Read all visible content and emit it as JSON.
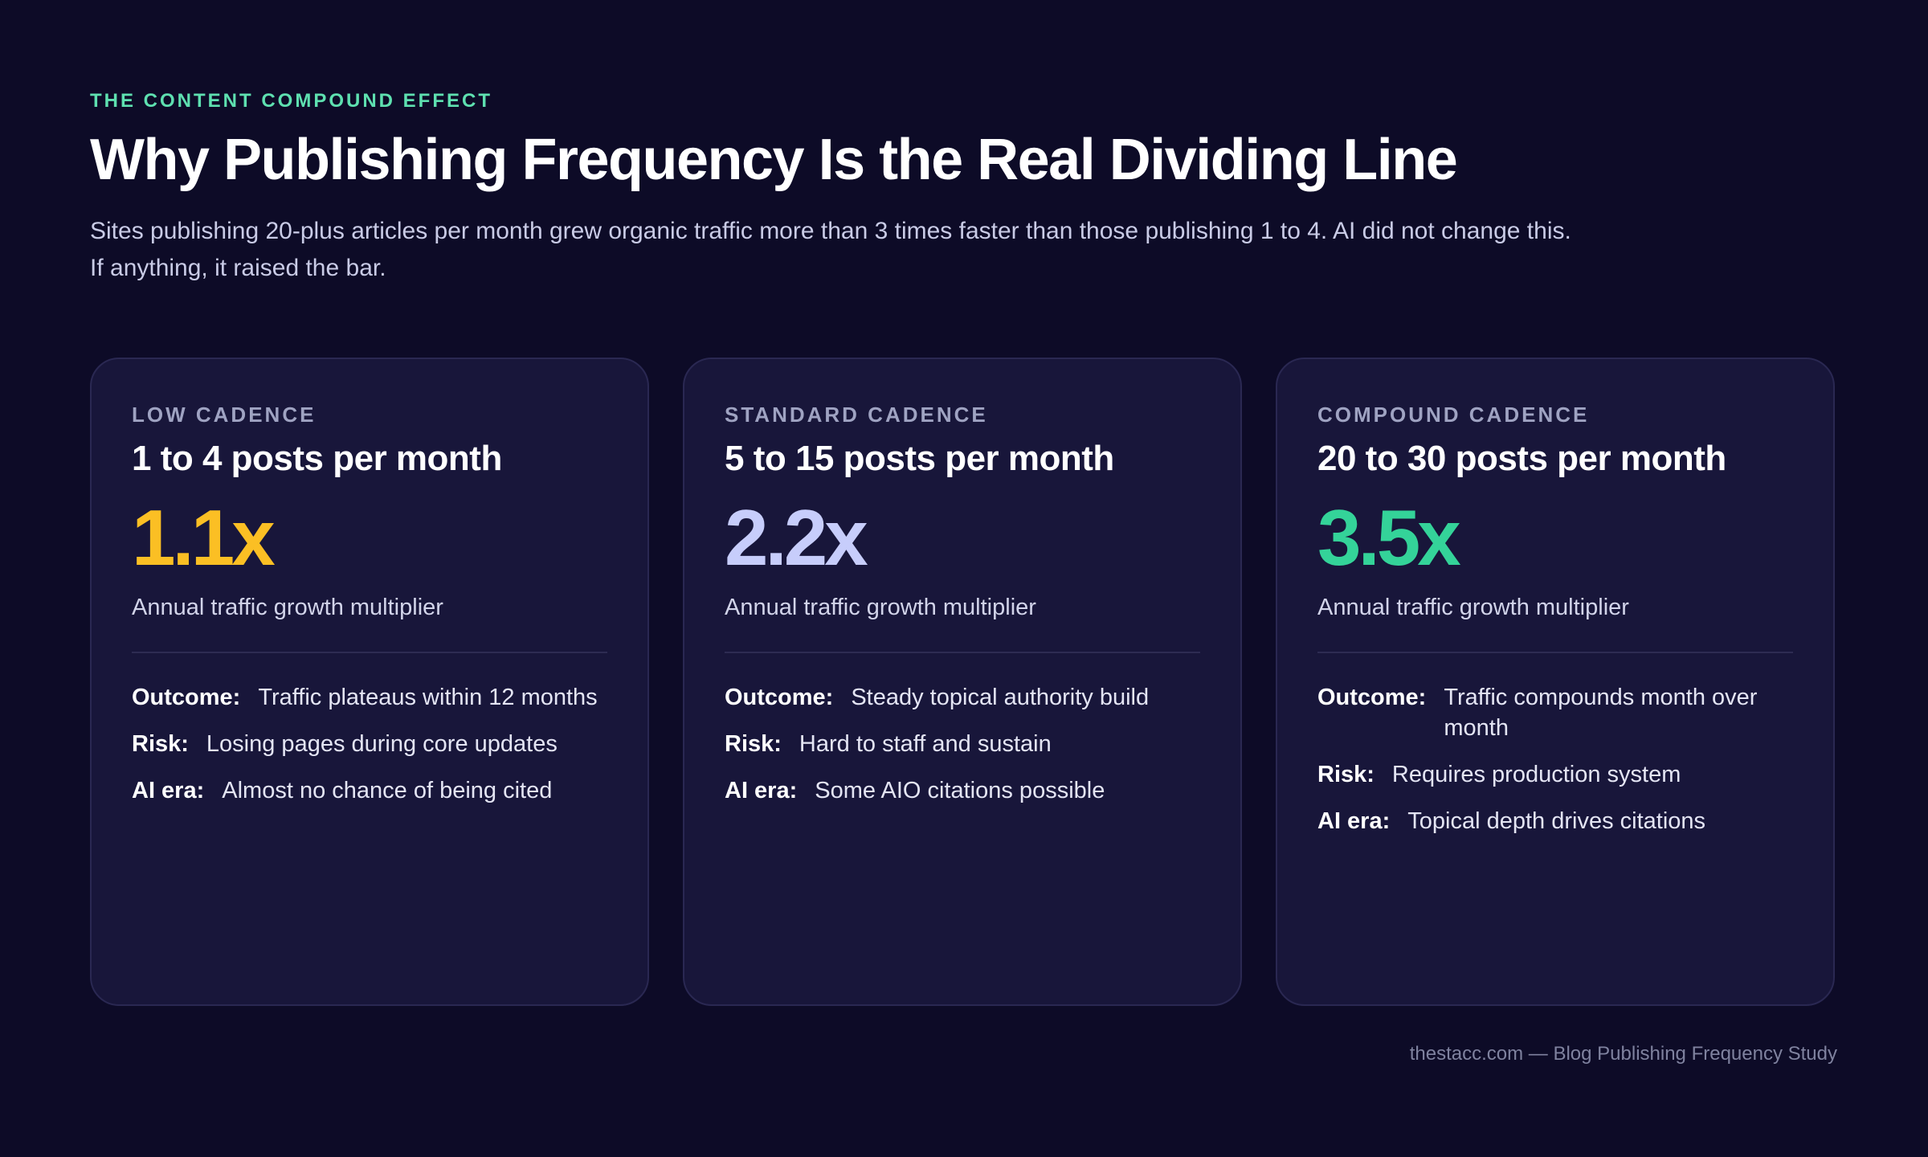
{
  "header": {
    "eyebrow": "THE CONTENT COMPOUND EFFECT",
    "title": "Why Publishing Frequency Is the Real Dividing Line",
    "subtitle": "Sites publishing 20-plus articles per month grew organic traffic more than 3 times faster than those publishing 1 to 4. AI did not change this. If anything, it raised the bar."
  },
  "cards": [
    {
      "label": "LOW CADENCE",
      "heading": "1 to 4 posts per month",
      "multiplier": "1.1x",
      "caption": "Annual traffic growth multiplier",
      "rows": [
        {
          "key": "Outcome:",
          "text": "Traffic plateaus within 12 months"
        },
        {
          "key": "Risk:",
          "text": "Losing pages during core updates"
        },
        {
          "key": "AI era:",
          "text": "Almost no chance of being cited"
        }
      ]
    },
    {
      "label": "STANDARD CADENCE",
      "heading": "5 to 15 posts per month",
      "multiplier": "2.2x",
      "caption": "Annual traffic growth multiplier",
      "rows": [
        {
          "key": "Outcome:",
          "text": "Steady topical authority build"
        },
        {
          "key": "Risk:",
          "text": "Hard to staff and sustain"
        },
        {
          "key": "AI era:",
          "text": "Some AIO citations possible"
        }
      ]
    },
    {
      "label": "COMPOUND CADENCE",
      "heading": "20 to 30 posts per month",
      "multiplier": "3.5x",
      "caption": "Annual traffic growth multiplier",
      "rows": [
        {
          "key": "Outcome:",
          "text": "Traffic compounds month over month"
        },
        {
          "key": "Risk:",
          "text": "Requires production system"
        },
        {
          "key": "AI era:",
          "text": "Topical depth drives citations"
        }
      ]
    }
  ],
  "footer": "thestacc.com — Blog Publishing Frequency Study"
}
